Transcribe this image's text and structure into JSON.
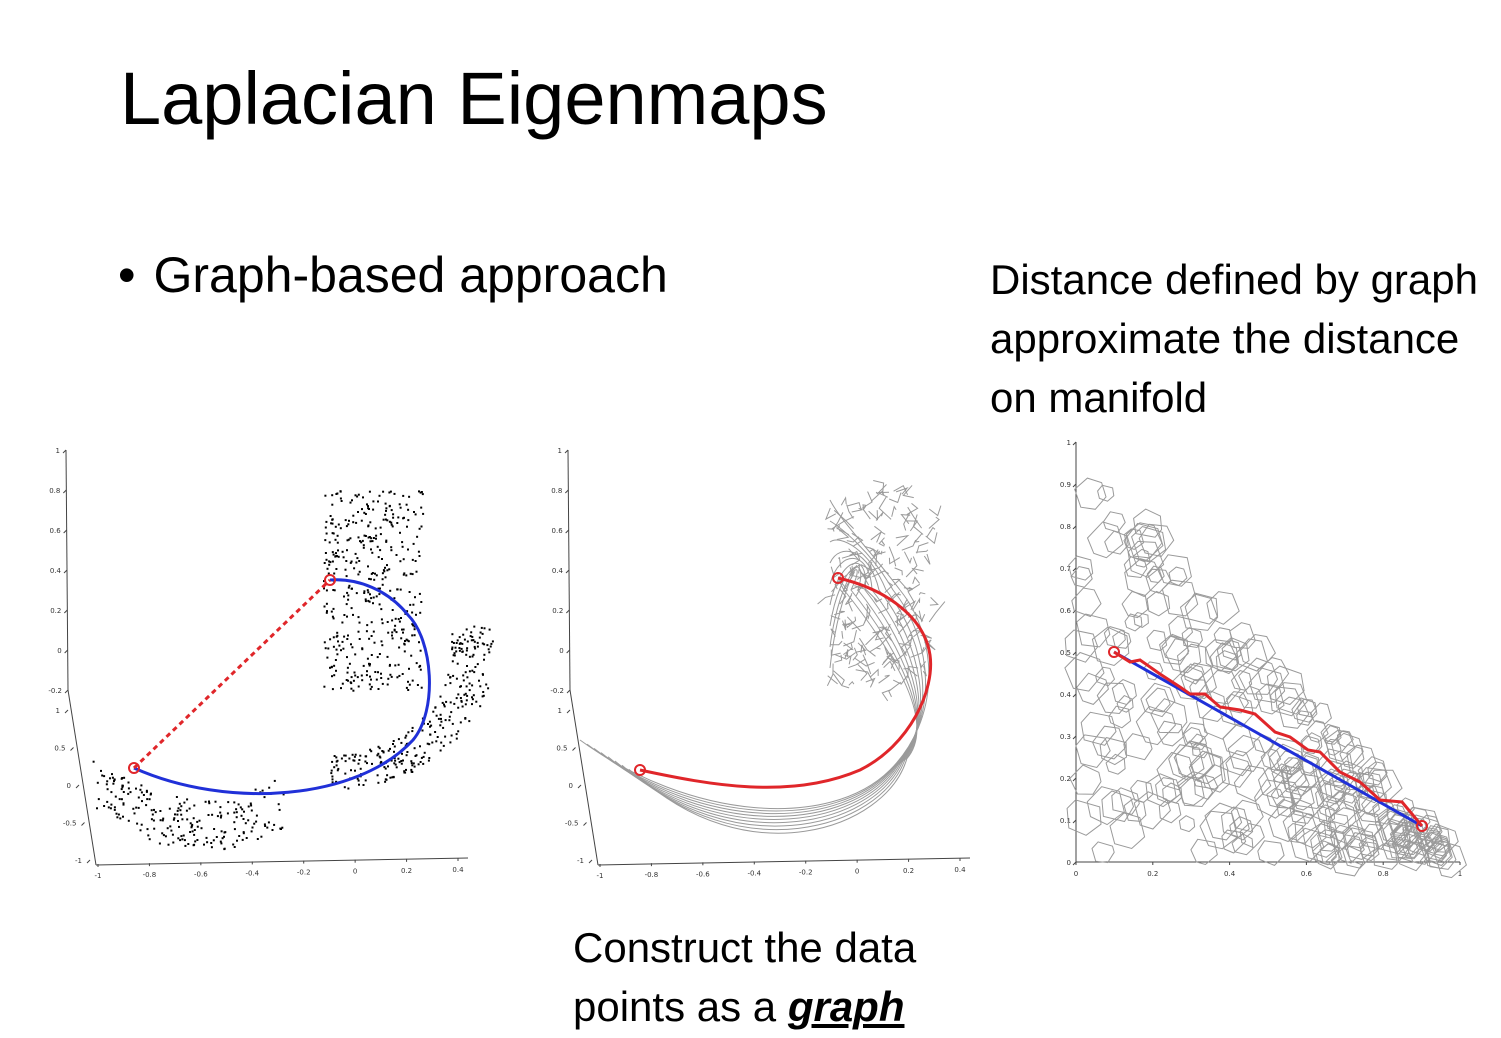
{
  "slide": {
    "title": "Laplacian Eigenmaps",
    "bullet": "Graph-based approach",
    "note_right": "Distance defined by graph approximate the distance on manifold",
    "note_bottom_prefix": "Construct the data points as a ",
    "note_bottom_emphasis": "graph"
  },
  "colors": {
    "path_red": "#e0262a",
    "geodesic_blue": "#2030d8",
    "points": "#000000",
    "graph_edges": "#9a9a9a"
  },
  "panels": {
    "swiss_roll_points": {
      "icon": "scatter-plot-figure",
      "z_ticks": [
        "1",
        "0.8",
        "0.6",
        "0.4",
        "0.2",
        "0",
        "-0.2"
      ],
      "y_ticks": [
        "1",
        "0.5",
        "0",
        "-0.5",
        "-1"
      ],
      "x_ticks": [
        "-1",
        "-0.8",
        "-0.6",
        "-0.4",
        "-0.2",
        "0",
        "0.2",
        "0.4"
      ]
    },
    "swiss_roll_graph": {
      "icon": "graph-figure",
      "z_ticks": [
        "1",
        "0.8",
        "0.6",
        "0.4",
        "0.2",
        "0",
        "-0.2"
      ],
      "y_ticks": [
        "1",
        "0.5",
        "0",
        "-0.5",
        "-1"
      ],
      "x_ticks": [
        "-1",
        "-0.8",
        "-0.6",
        "-0.4",
        "-0.2",
        "0",
        "0.2",
        "0.4"
      ]
    },
    "unrolled_graph": {
      "icon": "triangle-graph-figure",
      "y_ticks": [
        "1",
        "0.9",
        "0.8",
        "0.7",
        "0.6",
        "0.5",
        "0.4",
        "0.3",
        "0.2",
        "0.1",
        "0"
      ],
      "x_ticks": [
        "0",
        "0.2",
        "0.4",
        "0.6",
        "0.8",
        "1"
      ]
    }
  }
}
